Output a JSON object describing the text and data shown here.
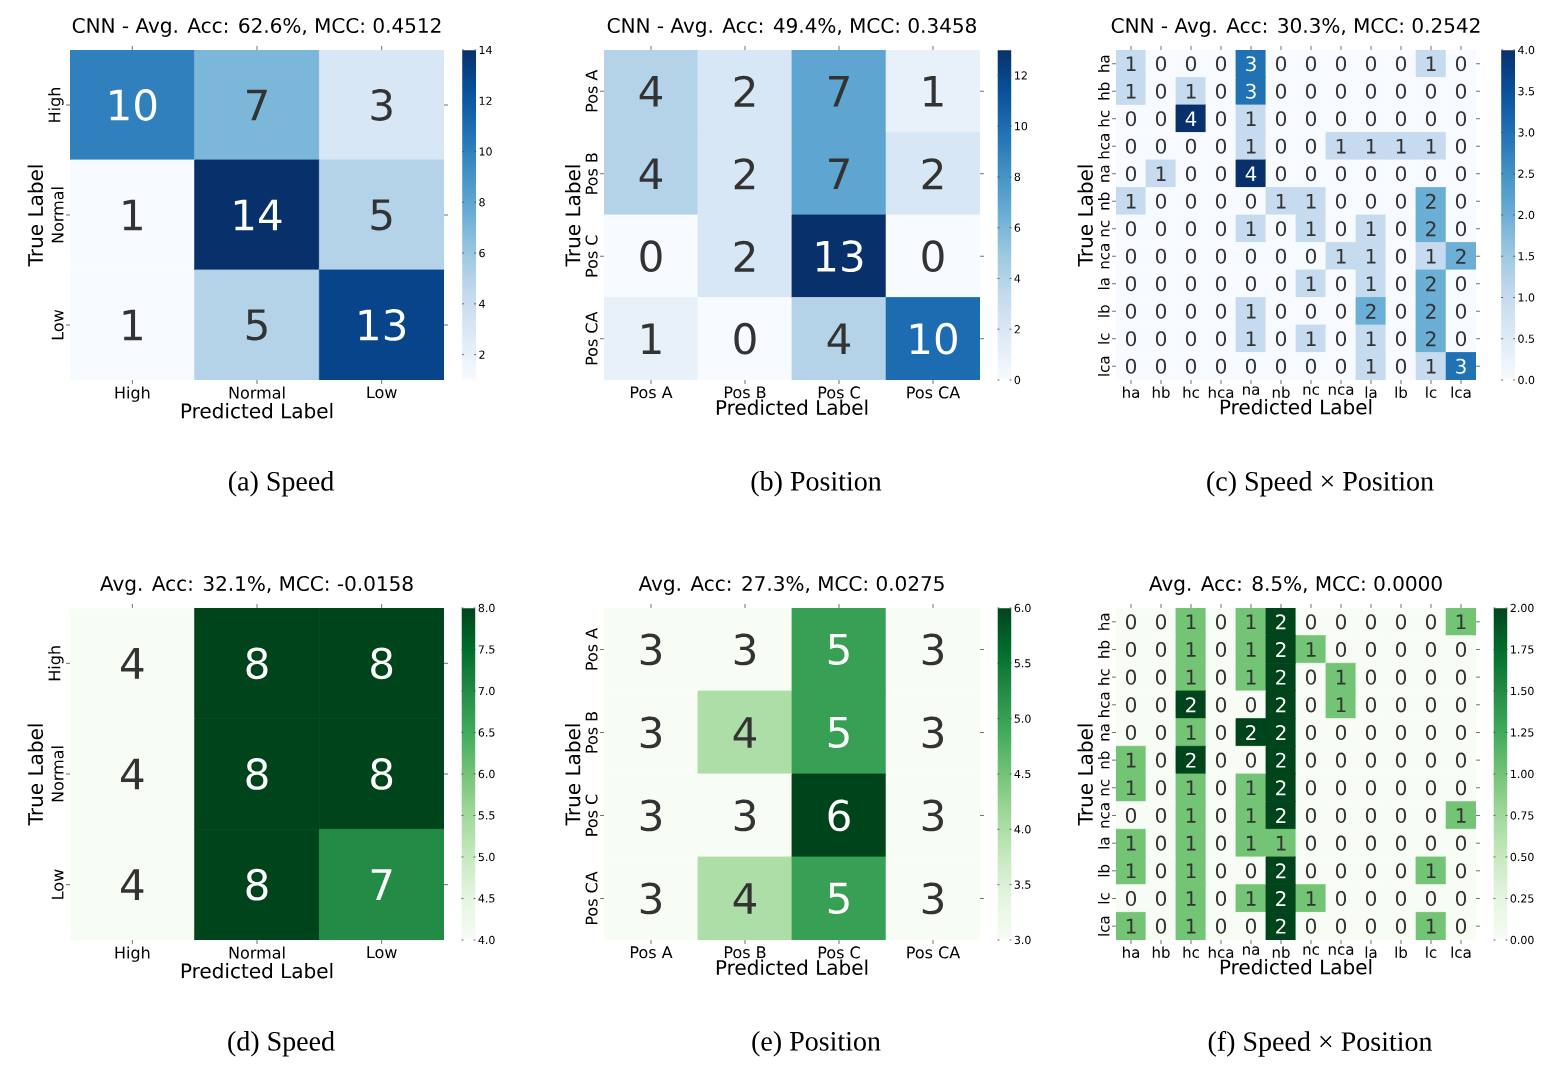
{
  "chart_data": [
    {
      "type": "heatmap",
      "title": "CNN - Avg. Acc: 62.6%, MCC: 0.4512",
      "xlabel": "Predicted Label",
      "ylabel": "True Label",
      "color": "#08306b",
      "data_labels": true,
      "categories": [
        "High",
        "Normal",
        "Low"
      ],
      "y_categories": [
        "High",
        "Normal",
        "Low"
      ],
      "cells": [
        [
          10,
          7,
          3
        ],
        [
          1,
          14,
          5
        ],
        [
          1,
          5,
          13
        ]
      ],
      "clim": [
        1,
        14
      ],
      "cticks": [
        2,
        4,
        6,
        8,
        10,
        12,
        14
      ],
      "annotations": [
        "(a) Speed"
      ]
    },
    {
      "type": "heatmap",
      "title": "CNN - Avg. Acc: 49.4%, MCC: 0.3458",
      "xlabel": "Predicted Label",
      "ylabel": "True Label",
      "color": "#08306b",
      "data_labels": true,
      "categories": [
        "Pos A",
        "Pos B",
        "Pos C",
        "Pos CA"
      ],
      "y_categories": [
        "Pos A",
        "Pos B",
        "Pos C",
        "Pos CA"
      ],
      "cells": [
        [
          4,
          2,
          7,
          1
        ],
        [
          4,
          2,
          7,
          2
        ],
        [
          0,
          2,
          13,
          0
        ],
        [
          1,
          0,
          4,
          10
        ]
      ],
      "clim": [
        0,
        13
      ],
      "cticks": [
        0,
        2,
        4,
        6,
        8,
        10,
        12
      ],
      "annotations": [
        "(b) Position"
      ]
    },
    {
      "type": "heatmap",
      "title": "CNN - Avg. Acc: 30.3%, MCC: 0.2542",
      "xlabel": "Predicted Label",
      "ylabel": "True Label",
      "color": "#08306b",
      "data_labels": true,
      "categories": [
        "ha",
        "hb",
        "hc",
        "hca",
        "na",
        "nb",
        "nc",
        "nca",
        "la",
        "lb",
        "lc",
        "lca"
      ],
      "y_categories": [
        "ha",
        "hb",
        "hc",
        "hca",
        "na",
        "nb",
        "nc",
        "nca",
        "la",
        "lb",
        "lc",
        "lca"
      ],
      "cells": [
        [
          1,
          0,
          0,
          0,
          3,
          0,
          0,
          0,
          0,
          0,
          1,
          0
        ],
        [
          1,
          0,
          1,
          0,
          3,
          0,
          0,
          0,
          0,
          0,
          0,
          0
        ],
        [
          0,
          0,
          4,
          0,
          1,
          0,
          0,
          0,
          0,
          0,
          0,
          0
        ],
        [
          0,
          0,
          0,
          0,
          1,
          0,
          0,
          1,
          1,
          1,
          1,
          0
        ],
        [
          0,
          1,
          0,
          0,
          4,
          0,
          0,
          0,
          0,
          0,
          0,
          0
        ],
        [
          1,
          0,
          0,
          0,
          0,
          1,
          1,
          0,
          0,
          0,
          2,
          0
        ],
        [
          0,
          0,
          0,
          0,
          1,
          0,
          1,
          0,
          1,
          0,
          2,
          0
        ],
        [
          0,
          0,
          0,
          0,
          0,
          0,
          0,
          1,
          1,
          0,
          1,
          2
        ],
        [
          0,
          0,
          0,
          0,
          0,
          0,
          1,
          0,
          1,
          0,
          2,
          0
        ],
        [
          0,
          0,
          0,
          0,
          1,
          0,
          0,
          0,
          2,
          0,
          2,
          0
        ],
        [
          0,
          0,
          0,
          0,
          1,
          0,
          1,
          0,
          1,
          0,
          2,
          0
        ],
        [
          0,
          0,
          0,
          0,
          0,
          0,
          0,
          0,
          1,
          0,
          1,
          3
        ]
      ],
      "clim": [
        0,
        4
      ],
      "cticks": [
        {
          "value": 0,
          "label": "0.0"
        },
        {
          "value": 0.5,
          "label": "0.5"
        },
        {
          "value": 1,
          "label": "1.0"
        },
        {
          "value": 1.5,
          "label": "1.5"
        },
        {
          "value": 2,
          "label": "2.0"
        },
        {
          "value": 2.5,
          "label": "2.5"
        },
        {
          "value": 3,
          "label": "3.0"
        },
        {
          "value": 3.5,
          "label": "3.5"
        },
        {
          "value": 4,
          "label": "4.0"
        }
      ],
      "annotations": [
        "(c) Speed × Position"
      ]
    },
    {
      "type": "heatmap",
      "title": "Avg. Acc: 32.1%, MCC: -0.0158",
      "xlabel": "Predicted Label",
      "ylabel": "True Label",
      "color": "#00441b",
      "data_labels": true,
      "categories": [
        "High",
        "Normal",
        "Low"
      ],
      "y_categories": [
        "High",
        "Normal",
        "Low"
      ],
      "cells": [
        [
          4,
          8,
          8
        ],
        [
          4,
          8,
          8
        ],
        [
          4,
          8,
          7
        ]
      ],
      "clim": [
        4,
        8
      ],
      "cticks": [
        {
          "value": 4,
          "label": "4.0"
        },
        {
          "value": 4.5,
          "label": "4.5"
        },
        {
          "value": 5,
          "label": "5.0"
        },
        {
          "value": 5.5,
          "label": "5.5"
        },
        {
          "value": 6,
          "label": "6.0"
        },
        {
          "value": 6.5,
          "label": "6.5"
        },
        {
          "value": 7,
          "label": "7.0"
        },
        {
          "value": 7.5,
          "label": "7.5"
        },
        {
          "value": 8,
          "label": "8.0"
        }
      ],
      "annotations": [
        "(d) Speed"
      ]
    },
    {
      "type": "heatmap",
      "title": "Avg. Acc: 27.3%, MCC: 0.0275",
      "xlabel": "Predicted Label",
      "ylabel": "True Label",
      "color": "#00441b",
      "data_labels": true,
      "categories": [
        "Pos A",
        "Pos B",
        "Pos C",
        "Pos CA"
      ],
      "y_categories": [
        "Pos A",
        "Pos B",
        "Pos C",
        "Pos CA"
      ],
      "cells": [
        [
          3,
          3,
          5,
          3
        ],
        [
          3,
          4,
          5,
          3
        ],
        [
          3,
          3,
          6,
          3
        ],
        [
          3,
          4,
          5,
          3
        ]
      ],
      "clim": [
        3,
        6
      ],
      "cticks": [
        {
          "value": 3,
          "label": "3.0"
        },
        {
          "value": 3.5,
          "label": "3.5"
        },
        {
          "value": 4,
          "label": "4.0"
        },
        {
          "value": 4.5,
          "label": "4.5"
        },
        {
          "value": 5,
          "label": "5.0"
        },
        {
          "value": 5.5,
          "label": "5.5"
        },
        {
          "value": 6,
          "label": "6.0"
        }
      ],
      "annotations": [
        "(e) Position"
      ]
    },
    {
      "type": "heatmap",
      "title": "Avg. Acc: 8.5%, MCC: 0.0000",
      "xlabel": "Predicted Label",
      "ylabel": "True Label",
      "color": "#00441b",
      "data_labels": true,
      "categories": [
        "ha",
        "hb",
        "hc",
        "hca",
        "na",
        "nb",
        "nc",
        "nca",
        "la",
        "lb",
        "lc",
        "lca"
      ],
      "y_categories": [
        "ha",
        "hb",
        "hc",
        "hca",
        "na",
        "nb",
        "nc",
        "nca",
        "la",
        "lb",
        "lc",
        "lca"
      ],
      "cells": [
        [
          0,
          0,
          1,
          0,
          1,
          2,
          0,
          0,
          0,
          0,
          0,
          1
        ],
        [
          0,
          0,
          1,
          0,
          1,
          2,
          1,
          0,
          0,
          0,
          0,
          0
        ],
        [
          0,
          0,
          1,
          0,
          1,
          2,
          0,
          1,
          0,
          0,
          0,
          0
        ],
        [
          0,
          0,
          2,
          0,
          0,
          2,
          0,
          1,
          0,
          0,
          0,
          0
        ],
        [
          0,
          0,
          1,
          0,
          2,
          2,
          0,
          0,
          0,
          0,
          0,
          0
        ],
        [
          1,
          0,
          2,
          0,
          0,
          2,
          0,
          0,
          0,
          0,
          0,
          0
        ],
        [
          1,
          0,
          1,
          0,
          1,
          2,
          0,
          0,
          0,
          0,
          0,
          0
        ],
        [
          0,
          0,
          1,
          0,
          1,
          2,
          0,
          0,
          0,
          0,
          0,
          1
        ],
        [
          1,
          0,
          1,
          0,
          1,
          1,
          0,
          0,
          0,
          0,
          0,
          0
        ],
        [
          1,
          0,
          1,
          0,
          0,
          2,
          0,
          0,
          0,
          0,
          1,
          0
        ],
        [
          0,
          0,
          1,
          0,
          1,
          2,
          1,
          0,
          0,
          0,
          0,
          0
        ],
        [
          1,
          0,
          1,
          0,
          0,
          2,
          0,
          0,
          0,
          0,
          1,
          0
        ]
      ],
      "clim": [
        0,
        2
      ],
      "cticks": [
        {
          "value": 0,
          "label": "0.00"
        },
        {
          "value": 0.25,
          "label": "0.25"
        },
        {
          "value": 0.5,
          "label": "0.50"
        },
        {
          "value": 0.75,
          "label": "0.75"
        },
        {
          "value": 1,
          "label": "1.00"
        },
        {
          "value": 1.25,
          "label": "1.25"
        },
        {
          "value": 1.5,
          "label": "1.50"
        },
        {
          "value": 1.75,
          "label": "1.75"
        },
        {
          "value": 2,
          "label": "2.00"
        }
      ],
      "annotations": [
        "(f) Speed × Position"
      ]
    }
  ]
}
